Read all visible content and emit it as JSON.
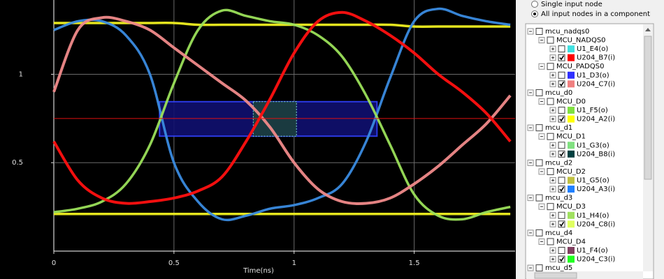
{
  "chart_data": {
    "type": "line",
    "x": [
      0,
      0.1,
      0.2,
      0.3,
      0.4,
      0.5,
      0.6,
      0.7,
      0.8,
      0.9,
      1.0,
      1.1,
      1.2,
      1.3,
      1.4,
      1.5,
      1.6,
      1.7,
      1.8,
      1.9
    ],
    "series": [
      {
        "color": "#f0f020",
        "values": [
          1.29,
          1.29,
          1.29,
          1.29,
          1.29,
          1.29,
          1.28,
          1.28,
          1.28,
          1.28,
          1.28,
          1.28,
          1.28,
          1.28,
          1.28,
          1.27,
          1.27,
          1.27,
          1.27,
          1.27
        ]
      },
      {
        "color": "#f0f020",
        "values": [
          0.21,
          0.21,
          0.21,
          0.21,
          0.21,
          0.21,
          0.21,
          0.21,
          0.21,
          0.21,
          0.21,
          0.21,
          0.21,
          0.21,
          0.21,
          0.21,
          0.21,
          0.21,
          0.21,
          0.21
        ]
      },
      {
        "color": "#3a8be0",
        "values": [
          1.25,
          1.3,
          1.3,
          1.22,
          1.0,
          0.5,
          0.28,
          0.18,
          0.2,
          0.24,
          0.26,
          0.3,
          0.38,
          0.62,
          0.98,
          1.3,
          1.37,
          1.33,
          1.3,
          1.28
        ]
      },
      {
        "color": "#9be05a",
        "values": [
          0.22,
          0.24,
          0.28,
          0.38,
          0.6,
          0.95,
          1.25,
          1.36,
          1.33,
          1.3,
          1.28,
          1.22,
          1.1,
          0.88,
          0.6,
          0.32,
          0.2,
          0.18,
          0.22,
          0.25
        ]
      },
      {
        "color": "#f08a8a",
        "values": [
          0.9,
          1.25,
          1.32,
          1.3,
          1.25,
          1.15,
          1.05,
          0.95,
          0.85,
          0.7,
          0.5,
          0.35,
          0.28,
          0.27,
          0.3,
          0.38,
          0.48,
          0.6,
          0.72,
          0.88
        ]
      },
      {
        "color": "#ff1010",
        "values": [
          0.62,
          0.4,
          0.3,
          0.27,
          0.28,
          0.3,
          0.34,
          0.42,
          0.62,
          0.86,
          1.12,
          1.3,
          1.35,
          1.3,
          1.22,
          1.12,
          1.0,
          0.9,
          0.78,
          0.62
        ]
      }
    ],
    "threshold": 0.75,
    "mask": {
      "xlim": [
        0.44,
        1.345
      ],
      "ylim": [
        0.65,
        0.845
      ]
    },
    "probe": {
      "xlim": [
        0.83,
        1.01
      ],
      "ylim": [
        0.65,
        0.845
      ]
    },
    "xlabel": "Time(ns)",
    "xlim": [
      0,
      1.92
    ],
    "ylim": [
      0,
      1.42
    ],
    "xticks": [
      0,
      0.5,
      1,
      1.5
    ],
    "yticks": [
      0.5,
      1
    ],
    "grid": true
  },
  "options": [
    {
      "label": "Single input node",
      "selected": false
    },
    {
      "label": "All input nodes in a component",
      "selected": true
    }
  ],
  "tree": {
    "rows": [
      {
        "label": "mcu_nadqs0",
        "level": 0,
        "checked": false
      },
      {
        "label": "MCU_NADQS0",
        "level": 1,
        "checked": false
      },
      {
        "label": "U1_E4(o)",
        "level": 2,
        "checked": false,
        "color": "#40e0e0"
      },
      {
        "label": "U204_B7(i)",
        "level": 2,
        "checked": true,
        "color": "#ff0000"
      },
      {
        "label": "MCU_PADQS0",
        "level": 1,
        "checked": false
      },
      {
        "label": "U1_D3(o)",
        "level": 2,
        "checked": false,
        "color": "#3030ff"
      },
      {
        "label": "U204_C7(i)",
        "level": 2,
        "checked": true,
        "color": "#f08080"
      },
      {
        "label": "mcu_d0",
        "level": 0,
        "checked": false
      },
      {
        "label": "MCU_D0",
        "level": 1,
        "checked": false
      },
      {
        "label": "U1_F5(o)",
        "level": 2,
        "checked": false,
        "color": "#80e040"
      },
      {
        "label": "U204_A2(i)",
        "level": 2,
        "checked": true,
        "color": "#ffff00"
      },
      {
        "label": "mcu_d1",
        "level": 0,
        "checked": false
      },
      {
        "label": "MCU_D1",
        "level": 1,
        "checked": false
      },
      {
        "label": "U1_G3(o)",
        "level": 2,
        "checked": false,
        "color": "#80e080"
      },
      {
        "label": "U204_B8(i)",
        "level": 2,
        "checked": true,
        "color": "#004040"
      },
      {
        "label": "mcu_d2",
        "level": 0,
        "checked": false
      },
      {
        "label": "MCU_D2",
        "level": 1,
        "checked": false
      },
      {
        "label": "U1_G5(o)",
        "level": 2,
        "checked": false,
        "color": "#c0c040"
      },
      {
        "label": "U204_A3(i)",
        "level": 2,
        "checked": true,
        "color": "#2080ff"
      },
      {
        "label": "mcu_d3",
        "level": 0,
        "checked": false
      },
      {
        "label": "MCU_D3",
        "level": 1,
        "checked": false
      },
      {
        "label": "U1_H4(o)",
        "level": 2,
        "checked": false,
        "color": "#a0e060"
      },
      {
        "label": "U204_C8(i)",
        "level": 2,
        "checked": true,
        "color": "#e0ff60"
      },
      {
        "label": "mcu_d4",
        "level": 0,
        "checked": false
      },
      {
        "label": "MCU_D4",
        "level": 1,
        "checked": false
      },
      {
        "label": "U1_F4(o)",
        "level": 2,
        "checked": false,
        "color": "#804060"
      },
      {
        "label": "U204_C3(i)",
        "level": 2,
        "checked": true,
        "color": "#20ff20"
      },
      {
        "label": "mcu_d5",
        "level": 0,
        "checked": false
      }
    ]
  }
}
